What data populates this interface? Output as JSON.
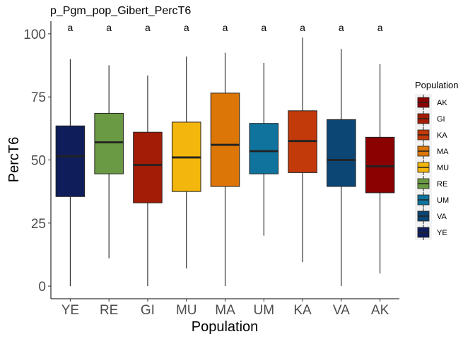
{
  "chart_data": {
    "type": "box",
    "title": "p_Pgm_pop_Gibert_PercT6",
    "xlabel": "Population",
    "ylabel": "PercT6",
    "ylim": [
      -5,
      105
    ],
    "yticks": [
      0,
      25,
      50,
      75,
      100
    ],
    "grid": false,
    "legend": {
      "title": "Population",
      "placement": "right",
      "entries": [
        {
          "label": "AK",
          "color": "#8b0000"
        },
        {
          "label": "GI",
          "color": "#a31c05"
        },
        {
          "label": "KA",
          "color": "#c23a0a"
        },
        {
          "label": "MA",
          "color": "#dc7607"
        },
        {
          "label": "MU",
          "color": "#f3b60c"
        },
        {
          "label": "RE",
          "color": "#6a9a43"
        },
        {
          "label": "UM",
          "color": "#0f739d"
        },
        {
          "label": "VA",
          "color": "#0c4674"
        },
        {
          "label": "YE",
          "color": "#0f1e5b"
        }
      ]
    },
    "categories": [
      "YE",
      "RE",
      "GI",
      "MU",
      "MA",
      "UM",
      "KA",
      "VA",
      "AK"
    ],
    "boxes": [
      {
        "category": "YE",
        "min": 0,
        "q1": 35.5,
        "median": 51.5,
        "q3": 63.5,
        "max": 90,
        "label": "a",
        "color": "#0f1e5b"
      },
      {
        "category": "RE",
        "min": 11,
        "q1": 44.5,
        "median": 57,
        "q3": 68.5,
        "max": 87.5,
        "label": "a",
        "color": "#6a9a43"
      },
      {
        "category": "GI",
        "min": 0,
        "q1": 33,
        "median": 48,
        "q3": 61,
        "max": 83.5,
        "label": "a",
        "color": "#a31c05"
      },
      {
        "category": "MU",
        "min": 7,
        "q1": 37.5,
        "median": 51,
        "q3": 65,
        "max": 91,
        "label": "a",
        "color": "#f3b60c"
      },
      {
        "category": "MA",
        "min": 0,
        "q1": 39.5,
        "median": 56,
        "q3": 76.5,
        "max": 92.5,
        "label": "a",
        "color": "#dc7607"
      },
      {
        "category": "UM",
        "min": 20,
        "q1": 44.5,
        "median": 53.5,
        "q3": 64.5,
        "max": 88.5,
        "label": "a",
        "color": "#0f739d"
      },
      {
        "category": "KA",
        "min": 9.5,
        "q1": 45,
        "median": 57.5,
        "q3": 69.5,
        "max": 98.5,
        "label": "a",
        "color": "#c23a0a"
      },
      {
        "category": "VA",
        "min": 0,
        "q1": 39.5,
        "median": 50,
        "q3": 66,
        "max": 94,
        "label": "a",
        "color": "#0c4674"
      },
      {
        "category": "AK",
        "min": 5,
        "q1": 37,
        "median": 47.5,
        "q3": 59,
        "max": 88,
        "label": "a",
        "color": "#8b0000"
      }
    ]
  }
}
